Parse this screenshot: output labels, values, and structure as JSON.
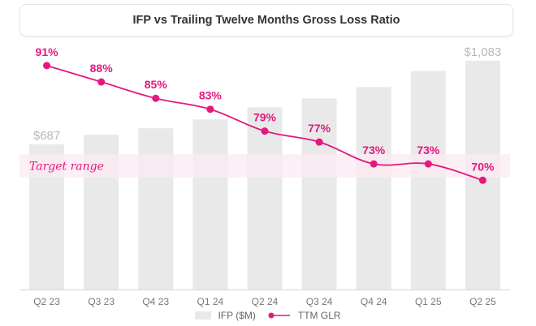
{
  "chart_data": {
    "type": "bar",
    "title": "IFP vs Trailing Twelve Months Gross Loss Ratio",
    "categories": [
      "Q2 23",
      "Q3 23",
      "Q4 23",
      "Q1 24",
      "Q2 24",
      "Q3 24",
      "Q4 24",
      "Q1 25",
      "Q2 25"
    ],
    "series": [
      {
        "name": "IFP ($M)",
        "type": "bar",
        "color": "#e9e9e9",
        "values": [
          687,
          733,
          763,
          805,
          862,
          904,
          958,
          1034,
          1083
        ],
        "labels": [
          "$687",
          null,
          null,
          null,
          null,
          null,
          null,
          null,
          "$1,083"
        ]
      },
      {
        "name": "TTM GLR",
        "type": "line",
        "color": "#e6177f",
        "values": [
          91,
          88,
          85,
          83,
          79,
          77,
          73,
          73,
          70
        ],
        "labels": [
          "91%",
          "88%",
          "85%",
          "83%",
          "79%",
          "77%",
          "73%",
          "73%",
          "70%"
        ]
      }
    ],
    "annotations": [
      {
        "text": "Target range",
        "type": "band",
        "series": "TTM GLR",
        "range": [
          70.5,
          74.8
        ],
        "color": "#fbeaf2"
      }
    ],
    "xlabel": "",
    "ylabel": "",
    "bar_ylim": [
      0,
      1370
    ],
    "line_ylim": [
      50,
      103
    ],
    "grid": false,
    "legend_position": "bottom"
  },
  "legend": {
    "bar_label": "IFP ($M)",
    "line_label": "TTM GLR"
  }
}
